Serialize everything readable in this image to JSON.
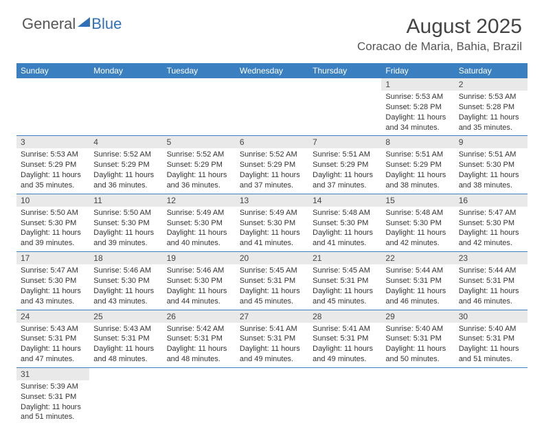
{
  "logo": {
    "word1": "General",
    "word2": "Blue"
  },
  "title": "August 2025",
  "location": "Coracao de Maria, Bahia, Brazil",
  "colors": {
    "header_bg": "#3a7fbf",
    "header_text": "#ffffff",
    "daynum_bg": "#e9e9e9",
    "row_border": "#3a7fbf",
    "logo_blue": "#2f70b8"
  },
  "weekdays": [
    "Sunday",
    "Monday",
    "Tuesday",
    "Wednesday",
    "Thursday",
    "Friday",
    "Saturday"
  ],
  "weeks": [
    [
      null,
      null,
      null,
      null,
      null,
      {
        "d": "1",
        "sr": "5:53 AM",
        "ss": "5:28 PM",
        "dl": "11 hours and 34 minutes."
      },
      {
        "d": "2",
        "sr": "5:53 AM",
        "ss": "5:28 PM",
        "dl": "11 hours and 35 minutes."
      }
    ],
    [
      {
        "d": "3",
        "sr": "5:53 AM",
        "ss": "5:29 PM",
        "dl": "11 hours and 35 minutes."
      },
      {
        "d": "4",
        "sr": "5:52 AM",
        "ss": "5:29 PM",
        "dl": "11 hours and 36 minutes."
      },
      {
        "d": "5",
        "sr": "5:52 AM",
        "ss": "5:29 PM",
        "dl": "11 hours and 36 minutes."
      },
      {
        "d": "6",
        "sr": "5:52 AM",
        "ss": "5:29 PM",
        "dl": "11 hours and 37 minutes."
      },
      {
        "d": "7",
        "sr": "5:51 AM",
        "ss": "5:29 PM",
        "dl": "11 hours and 37 minutes."
      },
      {
        "d": "8",
        "sr": "5:51 AM",
        "ss": "5:29 PM",
        "dl": "11 hours and 38 minutes."
      },
      {
        "d": "9",
        "sr": "5:51 AM",
        "ss": "5:30 PM",
        "dl": "11 hours and 38 minutes."
      }
    ],
    [
      {
        "d": "10",
        "sr": "5:50 AM",
        "ss": "5:30 PM",
        "dl": "11 hours and 39 minutes."
      },
      {
        "d": "11",
        "sr": "5:50 AM",
        "ss": "5:30 PM",
        "dl": "11 hours and 39 minutes."
      },
      {
        "d": "12",
        "sr": "5:49 AM",
        "ss": "5:30 PM",
        "dl": "11 hours and 40 minutes."
      },
      {
        "d": "13",
        "sr": "5:49 AM",
        "ss": "5:30 PM",
        "dl": "11 hours and 41 minutes."
      },
      {
        "d": "14",
        "sr": "5:48 AM",
        "ss": "5:30 PM",
        "dl": "11 hours and 41 minutes."
      },
      {
        "d": "15",
        "sr": "5:48 AM",
        "ss": "5:30 PM",
        "dl": "11 hours and 42 minutes."
      },
      {
        "d": "16",
        "sr": "5:47 AM",
        "ss": "5:30 PM",
        "dl": "11 hours and 42 minutes."
      }
    ],
    [
      {
        "d": "17",
        "sr": "5:47 AM",
        "ss": "5:30 PM",
        "dl": "11 hours and 43 minutes."
      },
      {
        "d": "18",
        "sr": "5:46 AM",
        "ss": "5:30 PM",
        "dl": "11 hours and 43 minutes."
      },
      {
        "d": "19",
        "sr": "5:46 AM",
        "ss": "5:30 PM",
        "dl": "11 hours and 44 minutes."
      },
      {
        "d": "20",
        "sr": "5:45 AM",
        "ss": "5:31 PM",
        "dl": "11 hours and 45 minutes."
      },
      {
        "d": "21",
        "sr": "5:45 AM",
        "ss": "5:31 PM",
        "dl": "11 hours and 45 minutes."
      },
      {
        "d": "22",
        "sr": "5:44 AM",
        "ss": "5:31 PM",
        "dl": "11 hours and 46 minutes."
      },
      {
        "d": "23",
        "sr": "5:44 AM",
        "ss": "5:31 PM",
        "dl": "11 hours and 46 minutes."
      }
    ],
    [
      {
        "d": "24",
        "sr": "5:43 AM",
        "ss": "5:31 PM",
        "dl": "11 hours and 47 minutes."
      },
      {
        "d": "25",
        "sr": "5:43 AM",
        "ss": "5:31 PM",
        "dl": "11 hours and 48 minutes."
      },
      {
        "d": "26",
        "sr": "5:42 AM",
        "ss": "5:31 PM",
        "dl": "11 hours and 48 minutes."
      },
      {
        "d": "27",
        "sr": "5:41 AM",
        "ss": "5:31 PM",
        "dl": "11 hours and 49 minutes."
      },
      {
        "d": "28",
        "sr": "5:41 AM",
        "ss": "5:31 PM",
        "dl": "11 hours and 49 minutes."
      },
      {
        "d": "29",
        "sr": "5:40 AM",
        "ss": "5:31 PM",
        "dl": "11 hours and 50 minutes."
      },
      {
        "d": "30",
        "sr": "5:40 AM",
        "ss": "5:31 PM",
        "dl": "11 hours and 51 minutes."
      }
    ],
    [
      {
        "d": "31",
        "sr": "5:39 AM",
        "ss": "5:31 PM",
        "dl": "11 hours and 51 minutes."
      },
      null,
      null,
      null,
      null,
      null,
      null
    ]
  ],
  "labels": {
    "sunrise": "Sunrise: ",
    "sunset": "Sunset: ",
    "daylight": "Daylight: "
  }
}
